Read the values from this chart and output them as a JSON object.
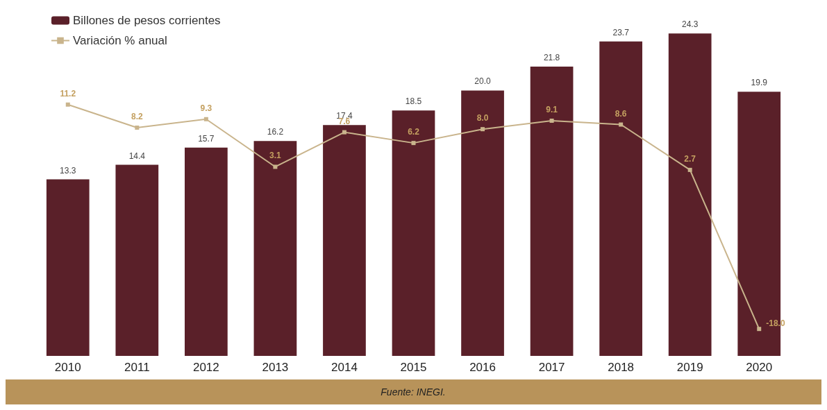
{
  "chart_data": {
    "type": "bar",
    "categories": [
      "2010",
      "2011",
      "2012",
      "2013",
      "2014",
      "2015",
      "2016",
      "2017",
      "2018",
      "2019",
      "2020"
    ],
    "series": [
      {
        "name": "Billones de pesos corrientes",
        "color": "#5a2029",
        "values": [
          13.3,
          14.4,
          15.7,
          16.2,
          17.4,
          18.5,
          20.0,
          21.8,
          23.7,
          24.3,
          19.9
        ],
        "value_labels": [
          "13.3",
          "14.4",
          "15.7",
          "16.2",
          "17.4",
          "18.5",
          "20.0",
          "21.8",
          "23.7",
          "24.3",
          "19.9"
        ]
      },
      {
        "name": "Variación % anual",
        "type": "line",
        "axis": "y2",
        "color": "#c9b48c",
        "marker": "square",
        "values": [
          11.2,
          8.2,
          9.3,
          3.1,
          7.6,
          6.2,
          8.0,
          9.1,
          8.6,
          2.7,
          -18.0
        ],
        "value_labels": [
          "11.2",
          "8.2",
          "9.3",
          "3.1",
          "7.6",
          "6.2",
          "8.0",
          "9.1",
          "8.6",
          "2.7",
          "-18.0"
        ]
      }
    ],
    "legend": "top left",
    "grid": false,
    "annotations": [
      "Fuente: INEGI."
    ]
  }
}
